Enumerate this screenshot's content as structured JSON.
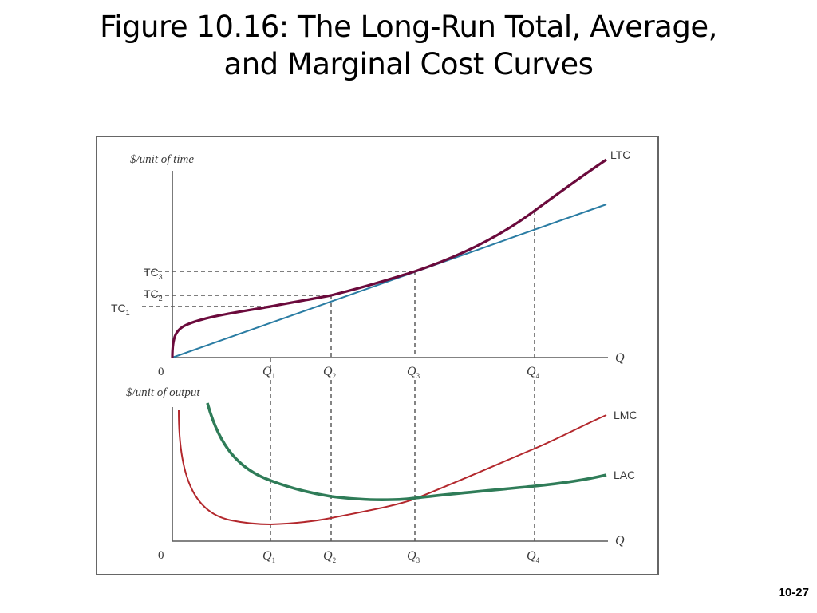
{
  "title": {
    "line1": "Figure 10.16: The Long-Run Total, Average,",
    "line2": "and Marginal Cost Curves"
  },
  "page_number": "10-27",
  "colors": {
    "ltc": "#6b0a3c",
    "ray": "#2a7ca3",
    "lac": "#2f7c58",
    "lmc": "#b3282d",
    "axis": "#5a5a5a",
    "frame": "#666666"
  },
  "top_panel": {
    "y_axis_label": "$/unit of time",
    "x_axis_label": "Q",
    "origin_label": "0",
    "curve_labels": {
      "ltc": "LTC"
    },
    "ticks": {
      "q1": {
        "base": "Q",
        "sub": "1"
      },
      "q2": {
        "base": "Q",
        "sub": "2"
      },
      "q3": {
        "base": "Q",
        "sub": "3"
      },
      "q4": {
        "base": "Q",
        "sub": "4"
      }
    },
    "y_ticks": {
      "tc1": {
        "base": "TC",
        "sub": "1"
      },
      "tc2": {
        "base": "TC",
        "sub": "2"
      },
      "tc3": {
        "base": "TC",
        "sub": "3"
      }
    }
  },
  "bottom_panel": {
    "y_axis_label": "$/unit of output",
    "x_axis_label": "Q",
    "origin_label": "0",
    "curve_labels": {
      "lmc": "LMC",
      "lac": "LAC"
    },
    "ticks": {
      "q1": {
        "base": "Q",
        "sub": "1"
      },
      "q2": {
        "base": "Q",
        "sub": "2"
      },
      "q3": {
        "base": "Q",
        "sub": "3"
      },
      "q4": {
        "base": "Q",
        "sub": "4"
      }
    }
  }
}
